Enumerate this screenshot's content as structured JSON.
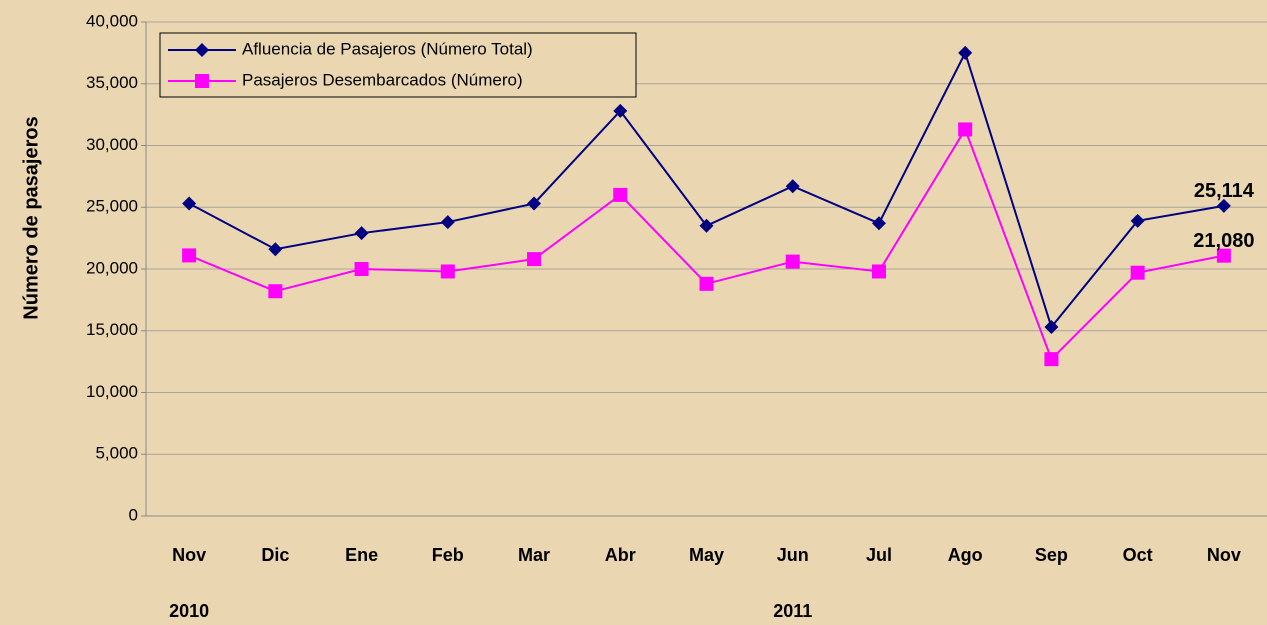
{
  "chart_data": {
    "type": "line",
    "ylabel": "Número de pasajeros",
    "categories": [
      "Nov",
      "Dic",
      "Ene",
      "Feb",
      "Mar",
      "Abr",
      "May",
      "Jun",
      "Jul",
      "Ago",
      "Sep",
      "Oct",
      "Nov"
    ],
    "x_group_labels": [
      "2010",
      "2011"
    ],
    "series": [
      {
        "name": "Afluencia de Pasajeros (Número Total)",
        "color": "#000080",
        "marker": "diamond",
        "values": [
          25300,
          21600,
          22900,
          23800,
          25300,
          32800,
          23500,
          26700,
          23700,
          37500,
          15300,
          23900,
          25114
        ],
        "value_labels": [
          null,
          null,
          null,
          null,
          null,
          null,
          null,
          null,
          null,
          null,
          null,
          null,
          "25,114"
        ]
      },
      {
        "name": "Pasajeros Desembarcados (Número)",
        "color": "#ff00ff",
        "marker": "square",
        "values": [
          21100,
          18200,
          20000,
          19800,
          20800,
          26000,
          18800,
          20600,
          19800,
          31300,
          12700,
          19700,
          21080
        ],
        "value_labels": [
          null,
          null,
          null,
          null,
          null,
          null,
          null,
          null,
          null,
          null,
          null,
          null,
          "21,080"
        ]
      }
    ],
    "ylim": [
      0,
      40000
    ],
    "yticks": [
      0,
      {
        "value": 5000,
        "label": "5,000"
      },
      {
        "value": 10000,
        "label": "10,000"
      },
      {
        "value": 15000,
        "label": "15,000"
      },
      {
        "value": 20000,
        "label": "20,000"
      },
      {
        "value": 25000,
        "label": "25,000"
      },
      {
        "value": 30000,
        "label": "30,000"
      },
      {
        "value": 35000,
        "label": "35,000"
      },
      {
        "value": 40000,
        "label": "40,000"
      }
    ],
    "grid": true
  }
}
